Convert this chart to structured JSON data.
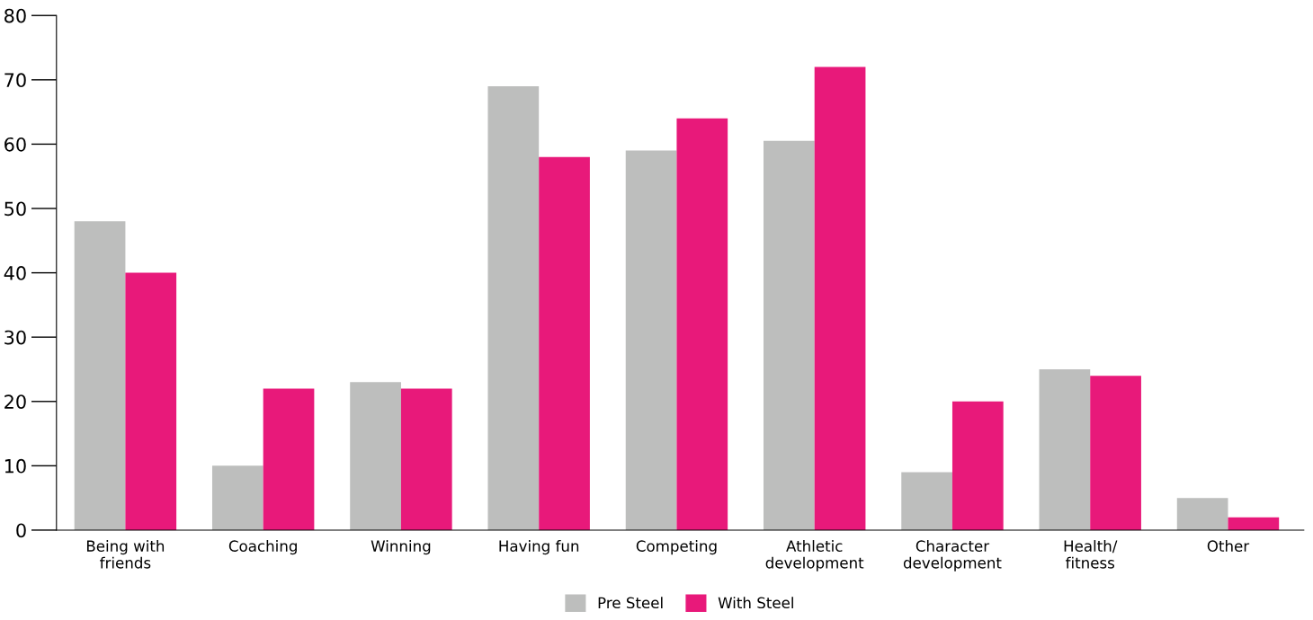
{
  "chart_data": {
    "type": "bar",
    "categories": [
      "Being with\nfriends",
      "Coaching",
      "Winning",
      "Having fun",
      "Competing",
      "Athletic\ndevelopment",
      "Character\ndevelopment",
      "Health/\nfitness",
      "Other"
    ],
    "series": [
      {
        "name": "Pre Steel",
        "color": "#bdbebd",
        "values": [
          48,
          10,
          23,
          69,
          59,
          60.5,
          9,
          25,
          5
        ]
      },
      {
        "name": "With Steel",
        "color": "#e8197a",
        "values": [
          40,
          22,
          22,
          58,
          64,
          72,
          20,
          24,
          2
        ]
      }
    ],
    "ylim": [
      0,
      80
    ],
    "yticks": [
      0,
      10,
      20,
      30,
      40,
      50,
      60,
      70,
      80
    ],
    "grid": false,
    "legend": "bottom"
  }
}
